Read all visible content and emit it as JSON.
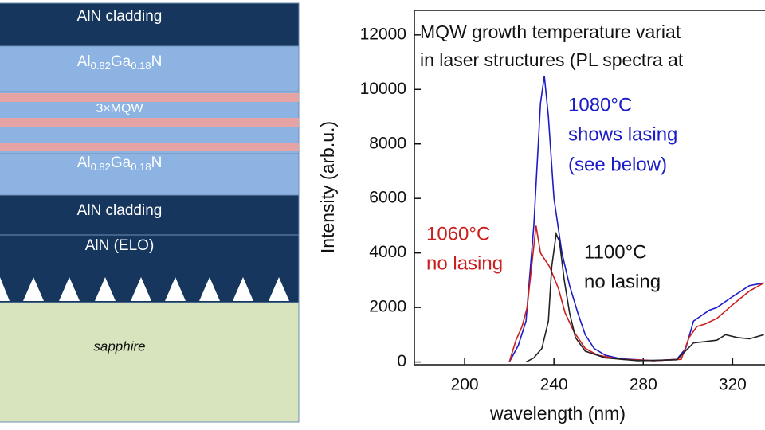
{
  "diagram": {
    "layers": [
      {
        "label": "AlN cladding"
      },
      {
        "label": [
          "Al",
          "0.82",
          "Ga",
          "0.18",
          "N"
        ]
      },
      {
        "label": "3×MQW"
      },
      {
        "label": [
          "Al",
          "0.82",
          "Ga",
          "0.18",
          "N"
        ]
      },
      {
        "label": "AlN cladding"
      },
      {
        "label": "AlN (ELO)"
      },
      {
        "label": "sapphire"
      }
    ]
  },
  "chart_data": {
    "type": "line",
    "title": [
      "MQW growth temperature variat",
      "in laser structures (PL spectra at"
    ],
    "xlabel": "wavelength (nm)",
    "ylabel": "Intensity (arb.u.)",
    "xlim": [
      177.5,
      334.5
    ],
    "xticks": [
      200,
      240,
      280,
      320
    ],
    "ylim": [
      -100,
      12900
    ],
    "yticks": [
      0,
      2000,
      4000,
      6000,
      8000,
      10000,
      12000
    ],
    "series": [
      {
        "name": "1080°C",
        "color": "#1c1cc8",
        "x": [
          220,
          224,
          227.5,
          231,
          234,
          235.7,
          237.5,
          240,
          243.6,
          247,
          250.7,
          254,
          258,
          263,
          270,
          284.6,
          295,
          299,
          302.5,
          306,
          309.6,
          313,
          320,
          327.5,
          334
        ],
        "values": [
          0,
          600,
          1500,
          5000,
          9500,
          10500,
          9000,
          6000,
          4000,
          2800,
          1800,
          1000,
          500,
          250,
          120,
          50,
          100,
          500,
          1500,
          1700,
          1900,
          2000,
          2400,
          2800,
          2900
        ]
      },
      {
        "name": "1060°C",
        "color": "#cc1f1f",
        "x": [
          220,
          223,
          225.7,
          228,
          230,
          232,
          234,
          238,
          242,
          245,
          249,
          254,
          259.6,
          270,
          284.6,
          297,
          300.5,
          304,
          307.8,
          313,
          320,
          327.5,
          334
        ],
        "values": [
          0,
          800,
          1300,
          2000,
          3500,
          5000,
          4000,
          3500,
          2700,
          1800,
          1100,
          500,
          250,
          100,
          50,
          100,
          900,
          1300,
          1400,
          1600,
          2100,
          2600,
          2900
        ]
      },
      {
        "name": "1100°C",
        "color": "#222222",
        "x": [
          227.5,
          231,
          234.6,
          237.5,
          239,
          241,
          242.5,
          244.6,
          247,
          249.6,
          254,
          263,
          277.5,
          295,
          302.5,
          307.8,
          313,
          316.8,
          322,
          327.5,
          334
        ],
        "values": [
          0,
          150,
          500,
          1500,
          3500,
          4700,
          4400,
          3000,
          1800,
          900,
          400,
          150,
          50,
          80,
          700,
          750,
          800,
          1000,
          900,
          850,
          1000
        ]
      }
    ],
    "annotations": [
      [
        "1080°C",
        "shows lasing",
        "(see below)"
      ],
      [
        "1060°C",
        "no lasing"
      ],
      [
        "1100°C",
        "no lasing"
      ]
    ]
  }
}
